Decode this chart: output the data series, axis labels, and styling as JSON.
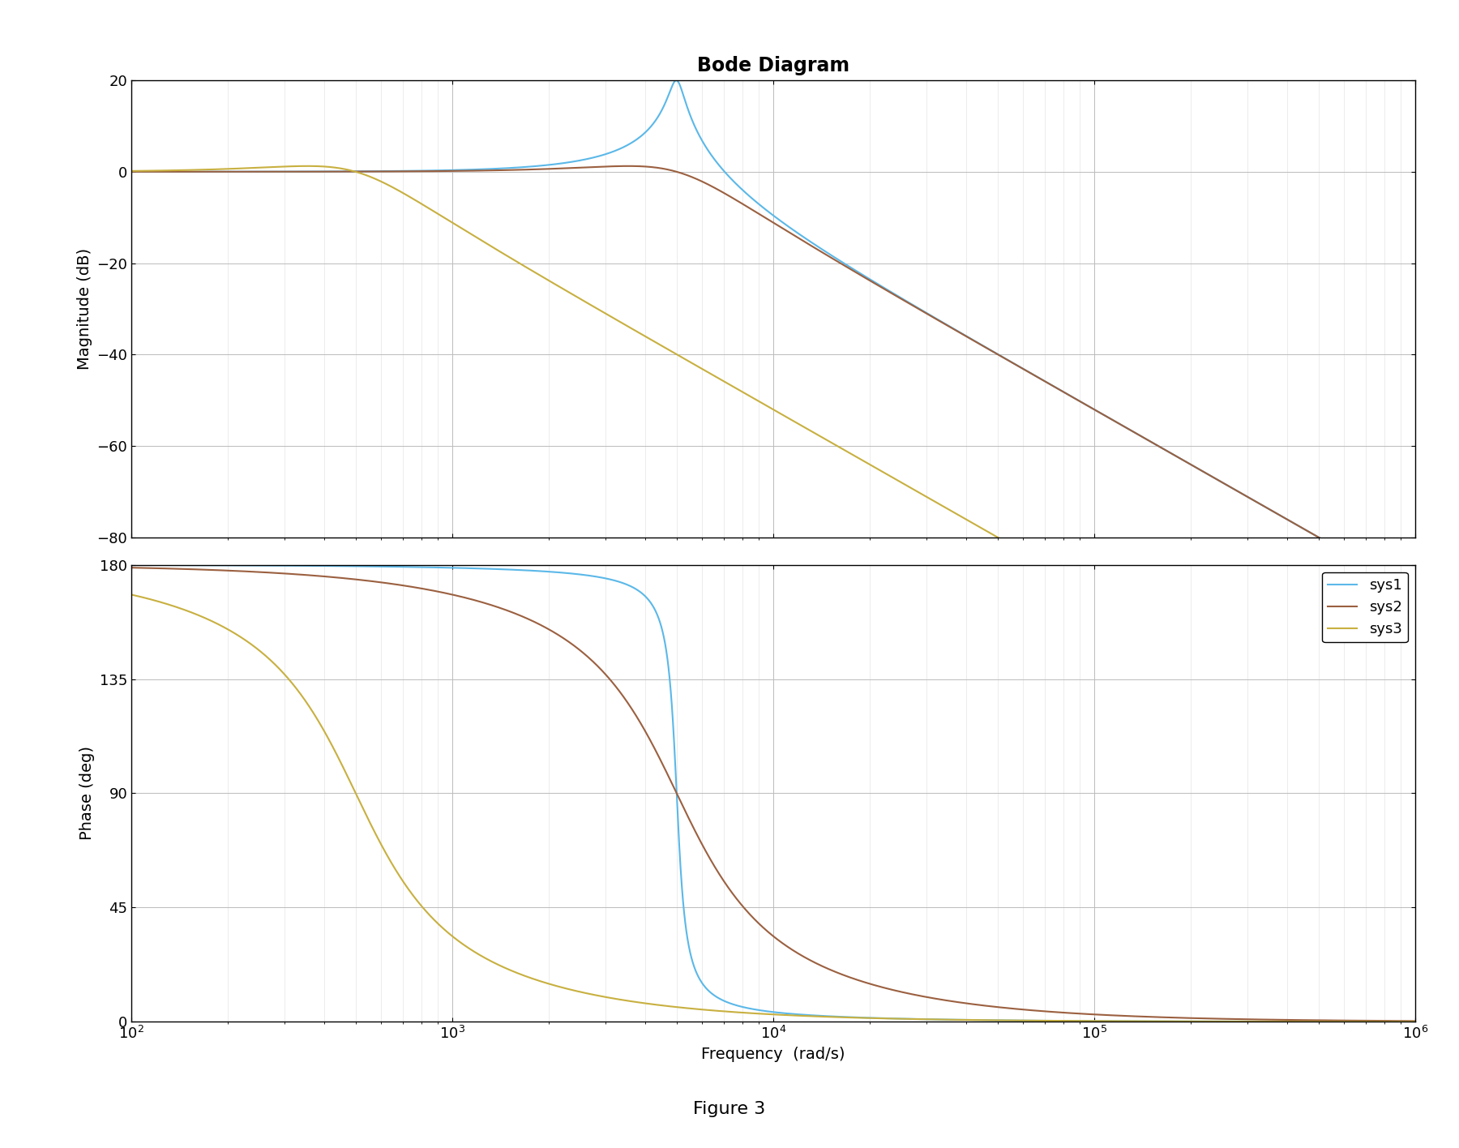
{
  "title": "Bode Diagram",
  "xlabel": "Frequency  (rad/s)",
  "ylabel_mag": "Magnitude (dB)",
  "ylabel_phase": "Phase (deg)",
  "figure_label": "Figure 3",
  "freq_min": 100,
  "freq_max": 1000000,
  "mag_ylim": [
    -80,
    20
  ],
  "phase_ylim": [
    0,
    180
  ],
  "mag_yticks": [
    -80,
    -60,
    -40,
    -20,
    0,
    20
  ],
  "phase_yticks": [
    0,
    45,
    90,
    135,
    180
  ],
  "colors": {
    "sys1": "#5BB8E8",
    "sys2": "#9B6040",
    "sys3": "#C8B040"
  },
  "legend_labels": [
    "sys1",
    "sys2",
    "sys3"
  ],
  "sys1": {
    "wn": 5000,
    "zeta": 0.05
  },
  "sys2": {
    "wn": 5000,
    "zeta": 0.5
  },
  "sys3": {
    "wn": 500,
    "zeta": 0.5
  },
  "background_color": "#ffffff",
  "title_fontsize": 17,
  "label_fontsize": 14,
  "tick_fontsize": 13,
  "legend_fontsize": 13,
  "linewidth": 1.5
}
